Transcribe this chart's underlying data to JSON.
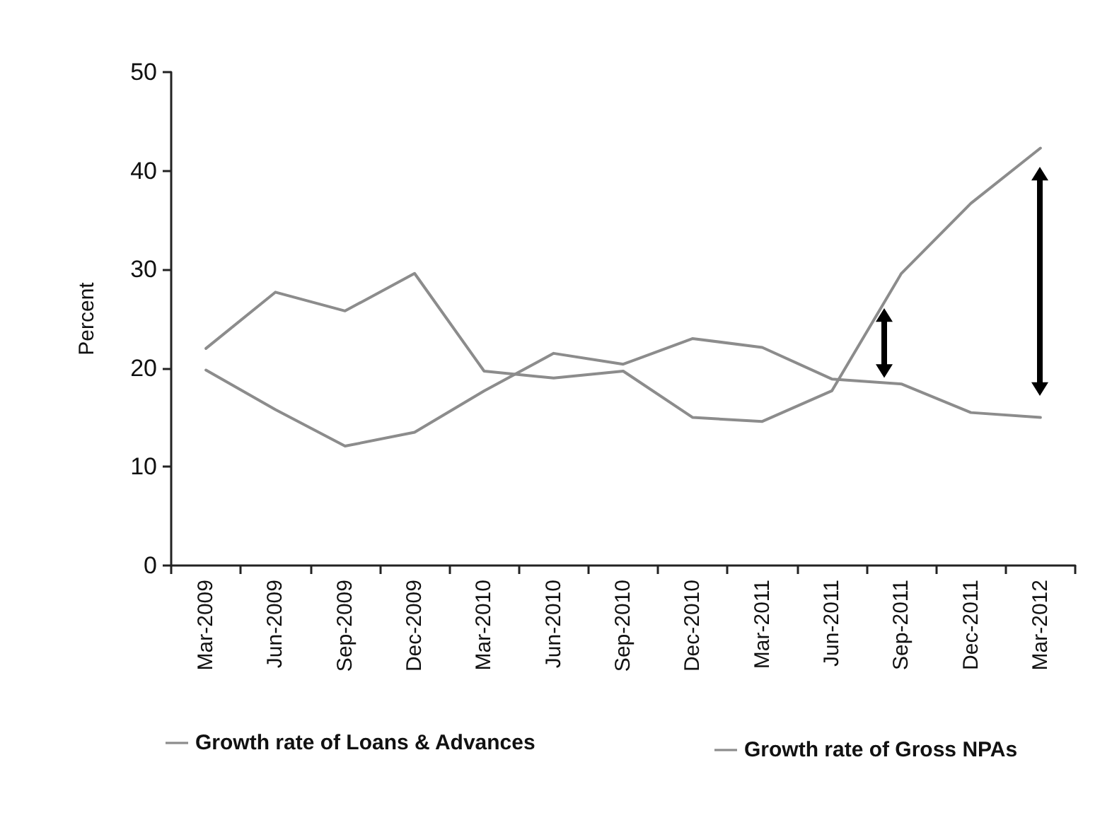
{
  "chart_data": {
    "type": "line",
    "ylabel": "Percent",
    "categories": [
      "Mar-2009",
      "Jun-2009",
      "Sep-2009",
      "Dec-2009",
      "Mar-2010",
      "Jun-2010",
      "Sep-2010",
      "Dec-2010",
      "Mar-2011",
      "Jun-2011",
      "Sep-2011",
      "Dec-2011",
      "Mar-2012"
    ],
    "series": [
      {
        "name": "Growth rate of Loans & Advances",
        "color": "#8c8c8c",
        "values": [
          19.8,
          15.8,
          12.1,
          13.5,
          17.7,
          21.5,
          20.4,
          23.0,
          22.1,
          18.9,
          18.4,
          15.5,
          15.0
        ]
      },
      {
        "name": "Growth rate of Gross NPAs",
        "color": "#8c8c8c",
        "values": [
          22.0,
          27.7,
          25.8,
          29.6,
          19.7,
          19.0,
          19.7,
          15.0,
          14.6,
          17.7,
          29.6,
          36.7,
          42.3
        ]
      }
    ],
    "ylim": [
      0,
      50
    ],
    "yticks": [
      0,
      10,
      20,
      30,
      40,
      50
    ],
    "grid": false,
    "legend": "bottom",
    "marker": "none",
    "line_style": "solid"
  }
}
